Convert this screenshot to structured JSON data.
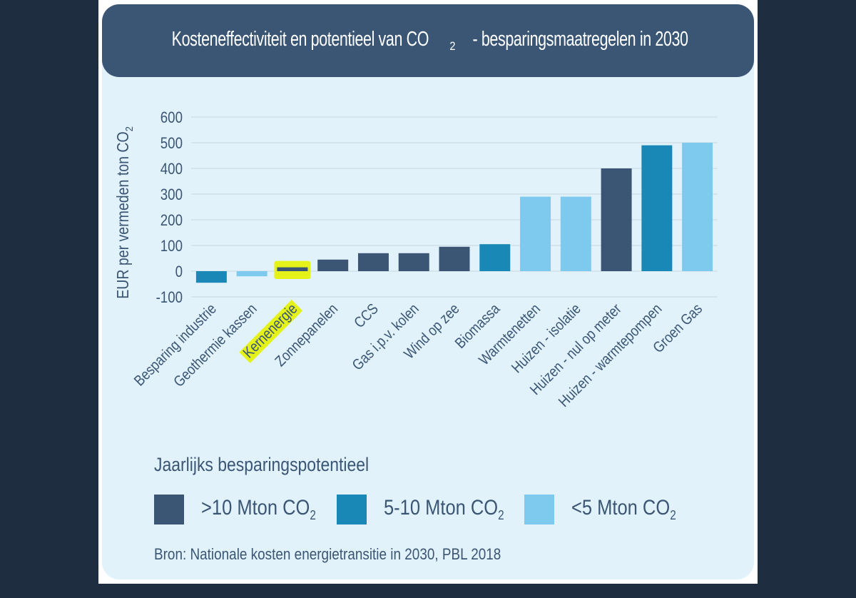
{
  "title": {
    "text_before": "Kosteneffectiviteit en potentieel van CO",
    "subscript": "2",
    "text_after": "- besparingsmaatregelen in 2030"
  },
  "legend": {
    "title": "Jaarlijks besparingspotentieel",
    "items": [
      {
        "label": ">10 Mton CO",
        "sub": "2",
        "color": "#3a5674",
        "key": "large"
      },
      {
        "label": "5-10 Mton CO",
        "sub": "2",
        "color": "#1a88b7",
        "key": "medium"
      },
      {
        "label": "<5 Mton CO",
        "sub": "2",
        "color": "#7dcaee",
        "key": "small"
      }
    ]
  },
  "source": "Bron: Nationale kosten energietransitie in 2030, PBL 2018",
  "highlight": {
    "category": "Kernenergie",
    "color": "#e4f21a"
  },
  "chart_data": {
    "type": "bar",
    "ylabel": "EUR per vermeden ton CO",
    "ylabel_sub": "2",
    "ylim": [
      -100,
      600
    ],
    "yticks": [
      600,
      500,
      400,
      300,
      200,
      100,
      0,
      -100
    ],
    "grid": true,
    "categories": [
      "Besparing industrie",
      "Geothermie kassen",
      "Kernenergie",
      "Zonnepanelen",
      "CCS",
      "Gas i.p.v. kolen",
      "Wind op zee",
      "Biomassa",
      "Warmtenetten",
      "Huizen - isolatie",
      "Huizen - nul op meter",
      "Huizen - warmtepompen",
      "Groen Gas"
    ],
    "values": [
      -45,
      -20,
      15,
      45,
      70,
      70,
      95,
      105,
      290,
      290,
      400,
      490,
      500
    ],
    "potential_class": [
      "medium",
      "small",
      "large",
      "large",
      "large",
      "large",
      "large",
      "medium",
      "small",
      "small",
      "large",
      "medium",
      "small"
    ]
  }
}
